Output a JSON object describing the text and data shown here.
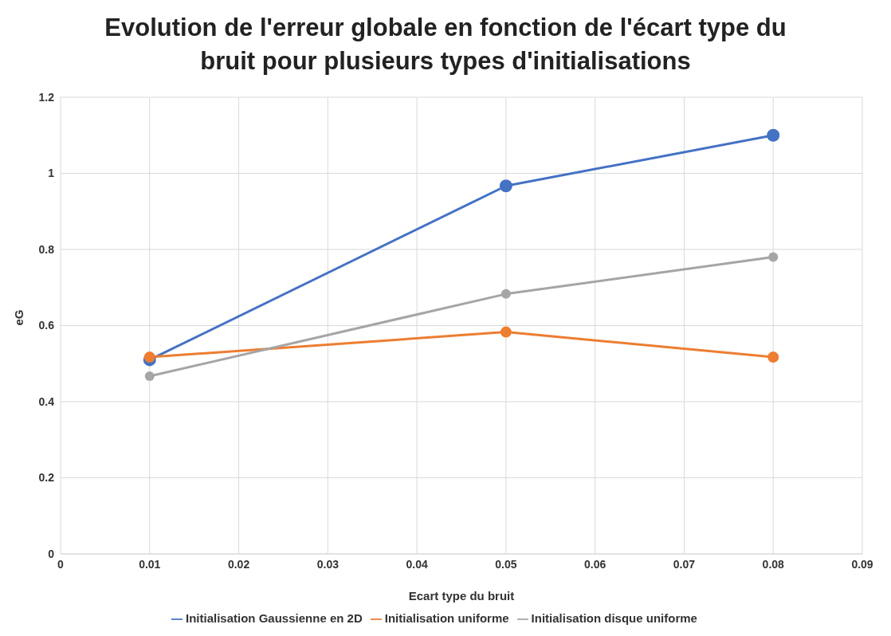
{
  "chart_data": {
    "type": "line",
    "title": "Evolution de l'erreur globale en fonction de l'écart type du bruit pour plusieurs types d'initialisations",
    "xlabel": "Ecart type du bruit",
    "ylabel": "eG",
    "x": [
      0.01,
      0.05,
      0.08
    ],
    "series": [
      {
        "name": "Initialisation Gaussienne en 2D",
        "color": "#4472c4",
        "values": [
          0.51,
          0.967,
          1.1
        ]
      },
      {
        "name": "Initialisation uniforme",
        "color": "#ed7d31",
        "values": [
          0.517,
          0.583,
          0.517
        ]
      },
      {
        "name": "Initialisation disque uniforme",
        "color": "#a5a5a5",
        "values": [
          0.467,
          0.683,
          0.78
        ]
      }
    ],
    "xlim": [
      0,
      0.09
    ],
    "xticks": [
      0,
      0.01,
      0.02,
      0.03,
      0.04,
      0.05,
      0.06,
      0.07,
      0.08,
      0.09
    ],
    "ylim": [
      0,
      1.2
    ],
    "yticks": [
      0,
      0.2,
      0.4,
      0.6,
      0.8,
      1,
      1.2
    ],
    "grid": true,
    "legend": "bottom",
    "marker": "circle",
    "line_style": "solid"
  }
}
